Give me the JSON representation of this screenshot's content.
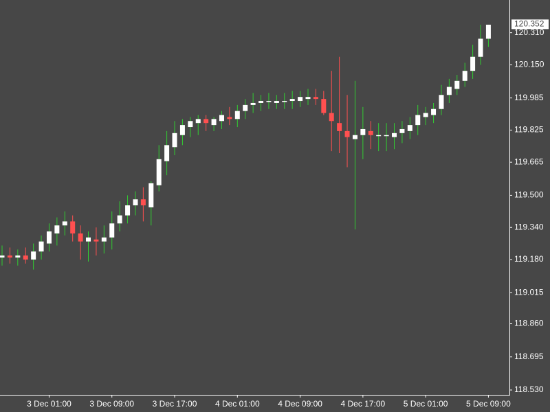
{
  "chart_data": {
    "type": "candlestick",
    "categories": [
      null,
      null,
      null,
      null,
      null,
      null,
      "3 Dec 01:00",
      null,
      null,
      null,
      null,
      null,
      null,
      null,
      "3 Dec 09:00",
      null,
      null,
      null,
      null,
      null,
      null,
      null,
      "3 Dec 17:00",
      null,
      null,
      null,
      null,
      null,
      null,
      null,
      "4 Dec 01:00",
      null,
      null,
      null,
      null,
      null,
      null,
      null,
      "4 Dec 09:00",
      null,
      null,
      null,
      null,
      null,
      null,
      null,
      "4 Dec 17:00",
      null,
      null,
      null,
      null,
      null,
      null,
      null,
      "5 Dec 01:00",
      null,
      null,
      null,
      null,
      null,
      null,
      null,
      "5 Dec 09:00"
    ],
    "open": [
      119.19,
      119.2,
      119.19,
      119.2,
      119.18,
      119.22,
      119.26,
      119.31,
      119.35,
      119.37,
      119.31,
      119.27,
      119.28,
      119.27,
      119.29,
      119.36,
      119.4,
      119.45,
      119.48,
      119.44,
      119.55,
      119.67,
      119.74,
      119.8,
      119.84,
      119.86,
      119.88,
      119.85,
      119.87,
      119.89,
      119.88,
      119.92,
      119.95,
      119.96,
      119.97,
      119.96,
      119.97,
      119.97,
      119.97,
      119.98,
      119.99,
      119.98,
      119.91,
      119.86,
      119.82,
      119.78,
      119.8,
      119.82,
      119.8,
      119.8,
      119.79,
      119.81,
      119.82,
      119.85,
      119.89,
      119.9,
      119.93,
      120.0,
      120.03,
      120.07,
      120.12,
      120.19,
      120.28
    ],
    "high": [
      119.25,
      119.24,
      119.23,
      119.24,
      119.26,
      119.3,
      119.36,
      119.39,
      119.42,
      119.4,
      119.35,
      119.32,
      119.34,
      119.35,
      119.42,
      119.47,
      119.5,
      119.52,
      119.54,
      119.57,
      119.75,
      119.82,
      119.87,
      119.88,
      119.89,
      119.9,
      119.9,
      119.89,
      119.92,
      119.94,
      119.95,
      119.98,
      120.01,
      120.0,
      120.01,
      120.0,
      120.01,
      120.02,
      120.02,
      120.03,
      120.03,
      120.02,
      120.12,
      120.19,
      120.0,
      120.07,
      119.94,
      119.87,
      119.86,
      119.86,
      119.86,
      119.87,
      119.89,
      119.95,
      119.94,
      119.96,
      120.05,
      120.08,
      120.1,
      120.16,
      120.25,
      120.35,
      120.35
    ],
    "low": [
      119.15,
      119.16,
      119.15,
      119.16,
      119.13,
      119.18,
      119.22,
      119.25,
      119.3,
      119.27,
      119.18,
      119.17,
      119.2,
      119.21,
      119.23,
      119.32,
      119.36,
      119.4,
      119.37,
      119.35,
      119.52,
      119.6,
      119.7,
      119.75,
      119.79,
      119.8,
      119.82,
      119.82,
      119.83,
      119.85,
      119.84,
      119.88,
      119.91,
      119.92,
      119.93,
      119.93,
      119.93,
      119.93,
      119.94,
      119.95,
      119.95,
      119.9,
      119.72,
      119.71,
      119.64,
      119.33,
      119.68,
      119.73,
      119.72,
      119.72,
      119.73,
      119.76,
      119.78,
      119.8,
      119.85,
      119.86,
      119.9,
      119.96,
      120.0,
      120.04,
      120.08,
      120.15,
      120.24
    ],
    "close": [
      119.2,
      119.19,
      119.2,
      119.18,
      119.22,
      119.27,
      119.32,
      119.35,
      119.37,
      119.31,
      119.27,
      119.29,
      119.27,
      119.29,
      119.36,
      119.4,
      119.45,
      119.48,
      119.45,
      119.56,
      119.68,
      119.75,
      119.81,
      119.85,
      119.87,
      119.88,
      119.86,
      119.88,
      119.9,
      119.88,
      119.92,
      119.95,
      119.96,
      119.97,
      119.97,
      119.97,
      119.97,
      119.98,
      119.99,
      119.99,
      119.98,
      119.91,
      119.87,
      119.82,
      119.79,
      119.8,
      119.83,
      119.8,
      119.8,
      119.8,
      119.81,
      119.83,
      119.85,
      119.9,
      119.91,
      119.93,
      120.0,
      120.04,
      120.07,
      120.12,
      120.19,
      120.28,
      120.35
    ],
    "up_color": "#ffffff",
    "down_color": "#ff5050",
    "up_wick_color": "#32cd32",
    "down_wick_color": "#ff5050",
    "ylim": [
      118.506,
      120.473
    ],
    "yticks": [
      {
        "value": 118.53,
        "label": "118.530"
      },
      118.695,
      {
        "value": 118.86,
        "label": "118.860"
      },
      119.015,
      {
        "value": 119.18,
        "label": "119.180"
      },
      {
        "value": 119.34,
        "label": "119.340"
      },
      {
        "value": 119.5,
        "label": "119.500"
      },
      119.665,
      119.825,
      119.985,
      {
        "value": 120.15,
        "label": "120.150"
      },
      {
        "value": 120.31,
        "label": "120.310"
      }
    ],
    "last_price": 120.352
  }
}
